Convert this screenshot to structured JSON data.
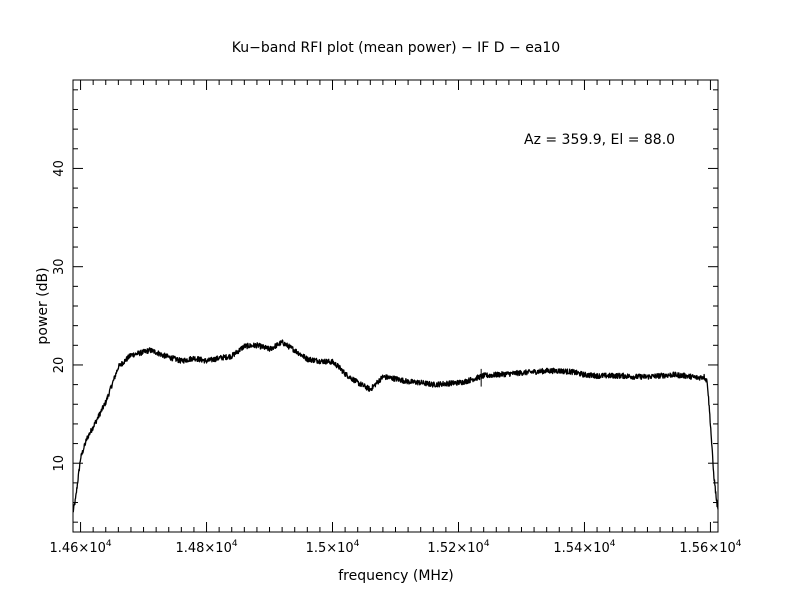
{
  "chart_data": {
    "type": "line",
    "title": "Ku−band RFI plot (mean power) − IF D − ea10",
    "xlabel": "frequency (MHz)",
    "ylabel": "power (dB)",
    "annotation": "Az = 359.9, El = 88.0",
    "xlim": [
      14588,
      15612
    ],
    "ylim": [
      3,
      49
    ],
    "x_ticks": [
      {
        "value": 14600,
        "mantissa": "1.46",
        "exp": "4"
      },
      {
        "value": 14800,
        "mantissa": "1.48",
        "exp": "4"
      },
      {
        "value": 15000,
        "mantissa": "1.5",
        "exp": "4"
      },
      {
        "value": 15200,
        "mantissa": "1.52",
        "exp": "4"
      },
      {
        "value": 15400,
        "mantissa": "1.54",
        "exp": "4"
      },
      {
        "value": 15600,
        "mantissa": "1.56",
        "exp": "4"
      }
    ],
    "y_ticks": [
      {
        "value": 10,
        "label": "10"
      },
      {
        "value": 20,
        "label": "20"
      },
      {
        "value": 30,
        "label": "30"
      },
      {
        "value": 40,
        "label": "40"
      }
    ],
    "grid": false,
    "series": [
      {
        "color": "#000000",
        "x": [
          14588,
          14592,
          14600,
          14610,
          14620,
          14640,
          14660,
          14680,
          14700,
          14710,
          14720,
          14730,
          14740,
          14760,
          14780,
          14800,
          14820,
          14840,
          14860,
          14880,
          14900,
          14920,
          14940,
          14960,
          14980,
          15000,
          15010,
          15020,
          15040,
          15060,
          15080,
          15100,
          15120,
          15140,
          15160,
          15180,
          15200,
          15210,
          15220,
          15230,
          15240,
          15260,
          15280,
          15300,
          15320,
          15340,
          15360,
          15380,
          15400,
          15420,
          15440,
          15460,
          15480,
          15500,
          15520,
          15540,
          15560,
          15570,
          15580,
          15590,
          15595,
          15600,
          15605,
          15610,
          15612
        ],
        "y": [
          5.0,
          6.3,
          10.5,
          12.5,
          13.7,
          16.2,
          19.8,
          21.0,
          21.3,
          21.5,
          21.3,
          21.0,
          20.8,
          20.4,
          20.7,
          20.4,
          20.7,
          20.9,
          21.9,
          22.0,
          21.6,
          22.3,
          21.5,
          20.6,
          20.4,
          20.3,
          19.8,
          19.1,
          18.2,
          17.5,
          18.8,
          18.6,
          18.3,
          18.2,
          18.0,
          18.1,
          18.2,
          18.3,
          18.5,
          18.7,
          18.9,
          19.0,
          19.1,
          19.2,
          19.3,
          19.4,
          19.4,
          19.3,
          19.0,
          18.9,
          18.9,
          18.9,
          18.8,
          18.8,
          18.9,
          19.0,
          18.9,
          18.8,
          18.7,
          18.8,
          18.3,
          14.0,
          9.0,
          6.0,
          5.3
        ]
      }
    ]
  }
}
